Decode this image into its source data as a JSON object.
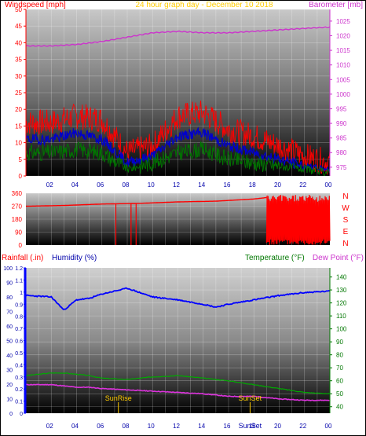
{
  "chart_data": [
    {
      "type": "line",
      "title": "24 hour graph day - December 10 2018",
      "left_axis_label": "Windspeed [mph]",
      "right_axis_label": "Barometer [mb]",
      "x_ticks": [
        "02",
        "04",
        "06",
        "08",
        "10",
        "12",
        "14",
        "16",
        "18",
        "20",
        "22",
        "00"
      ],
      "left_ticks": [
        0,
        5,
        10,
        15,
        20,
        25,
        30,
        35,
        40,
        45,
        50
      ],
      "right_ticks": [
        975,
        980,
        985,
        990,
        995,
        1000,
        1005,
        1010,
        1015,
        1020,
        1025
      ],
      "ylim_left": [
        0,
        50
      ],
      "ylim_right": [
        972,
        1029
      ],
      "x_hours": [
        0,
        2,
        4,
        6,
        8,
        10,
        12,
        14,
        16,
        18,
        20,
        22,
        24
      ],
      "barometer_mb": [
        1016.5,
        1016.5,
        1017.0,
        1018.0,
        1019.5,
        1021.0,
        1021.5,
        1021.0,
        1021.0,
        1021.5,
        1022.0,
        1022.5,
        1023.0
      ],
      "gust_mph": [
        16,
        16,
        18,
        17,
        7,
        9,
        18,
        19,
        14,
        12,
        9,
        6,
        4
      ],
      "wind_mph": [
        11,
        11,
        13,
        11,
        4,
        6,
        12,
        13,
        9,
        7,
        5,
        3,
        2
      ],
      "dir_windspeed_mph": [
        7,
        7,
        8,
        7,
        2,
        4,
        7,
        8,
        5,
        4,
        3,
        2,
        1
      ],
      "colors": {
        "gust": "#ff0000",
        "wind": "#0000cc",
        "green": "#007700",
        "barometer": "#cc33cc",
        "title": "#ffcc00"
      }
    },
    {
      "type": "line",
      "left_ticks": [
        0,
        90,
        180,
        270,
        360
      ],
      "right_labels": [
        "N",
        "W",
        "S",
        "E",
        "N"
      ],
      "ylim": [
        0,
        360
      ],
      "x_hours": [
        0,
        3,
        6,
        9,
        12,
        15,
        18,
        19,
        24
      ],
      "direction_deg": [
        270,
        275,
        285,
        290,
        300,
        305,
        320,
        330,
        300
      ],
      "colors": {
        "line": "#ff0000"
      }
    },
    {
      "type": "line",
      "labels": {
        "rainfall": "Rainfall (.in)",
        "humidity": "Humidity (%)",
        "temperature": "Temperature (°F)",
        "dew_point": "Dew Point (°F)",
        "sunrise": "SunRise",
        "sunset": "SunSet",
        "sunset_axis": "SunSet"
      },
      "x_ticks": [
        "02",
        "04",
        "06",
        "08",
        "10",
        "12",
        "14",
        "16",
        "18",
        "20",
        "22",
        "00"
      ],
      "humidity_ticks": [
        0,
        10,
        20,
        30,
        40,
        50,
        60,
        70,
        80,
        90,
        100
      ],
      "rain_ticks": [
        0,
        0.1,
        0.2,
        0.3,
        0.4,
        0.5,
        0.6,
        0.7,
        0.8,
        0.9,
        1,
        1.1,
        1.2
      ],
      "temp_ticks": [
        40,
        50,
        60,
        70,
        80,
        90,
        100,
        110,
        120,
        130,
        140
      ],
      "ylim_humidity": [
        0,
        100
      ],
      "ylim_temp": [
        35,
        147
      ],
      "x_hours": [
        0,
        2,
        3,
        4,
        5,
        6,
        8,
        10,
        12,
        14,
        15,
        16,
        18,
        20,
        22,
        24
      ],
      "humidity_pct": [
        81,
        80,
        71,
        78,
        79,
        82,
        86,
        80,
        78,
        75,
        73,
        75,
        78,
        81,
        83,
        84
      ],
      "temperature_f": [
        64,
        66,
        66,
        65,
        64,
        62,
        61,
        63,
        64,
        62,
        61,
        60,
        57,
        54,
        51,
        50
      ],
      "dew_point_f": [
        57,
        57,
        56,
        55,
        55,
        54,
        53,
        52,
        51,
        50,
        49,
        48,
        48,
        46,
        45,
        45
      ],
      "sunrise_hour": 7.3,
      "sunset_hour": 17.7,
      "colors": {
        "humidity": "#0000ff",
        "temperature": "#00aa00",
        "dew_point": "#dd33dd",
        "rain": "#ff0000",
        "sun": "#ffcc00"
      }
    }
  ]
}
